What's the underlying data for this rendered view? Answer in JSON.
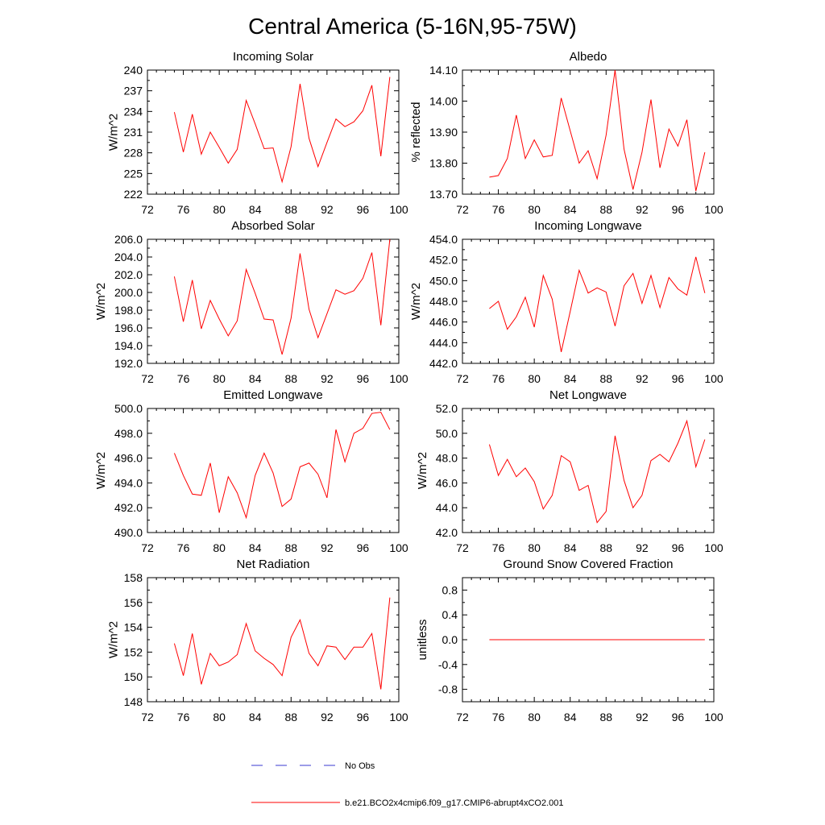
{
  "figure": {
    "title": "Central America (5-16N,95-75W)",
    "series_color": "#ff0000",
    "obs_color": "#3a3ad0"
  },
  "legend": {
    "obs_label": "No Obs",
    "model_label": "b.e21.BCO2x4cmip6.f09_g17.CMIP6-abrupt4xCO2.001"
  },
  "chart_data": [
    {
      "type": "line",
      "title": "Incoming Solar",
      "xlabel": "",
      "ylabel": "W/m^2",
      "xlim": [
        72,
        100
      ],
      "xticks": [
        72,
        76,
        80,
        84,
        88,
        92,
        96,
        100
      ],
      "xtick_labels": [
        "72",
        "76",
        "80",
        "84",
        "88",
        "92",
        "96",
        "100"
      ],
      "ylim": [
        222,
        240
      ],
      "yticks": [
        222,
        225,
        228,
        231,
        234,
        237,
        240
      ],
      "ytick_labels": [
        "222",
        "225",
        "228",
        "231",
        "234",
        "237",
        "240"
      ],
      "x": [
        75,
        76,
        77,
        78,
        79,
        80,
        81,
        82,
        83,
        84,
        85,
        86,
        87,
        88,
        89,
        90,
        91,
        92,
        93,
        94,
        95,
        96,
        97,
        98,
        99
      ],
      "series": [
        {
          "name": "b.e21.BCO2x4cmip6.f09_g17.CMIP6-abrupt4xCO2.001",
          "values": [
            233.9,
            228.1,
            233.6,
            227.8,
            231.0,
            228.8,
            226.5,
            228.5,
            235.6,
            232.2,
            228.6,
            228.7,
            223.8,
            228.9,
            238.0,
            230.1,
            226.0,
            229.5,
            232.9,
            231.8,
            232.5,
            234.1,
            237.8,
            227.5,
            239.0
          ]
        }
      ]
    },
    {
      "type": "line",
      "title": "Albedo",
      "xlabel": "",
      "ylabel": "% reflected",
      "xlim": [
        72,
        100
      ],
      "xticks": [
        72,
        76,
        80,
        84,
        88,
        92,
        96,
        100
      ],
      "xtick_labels": [
        "72",
        "76",
        "80",
        "84",
        "88",
        "92",
        "96",
        "100"
      ],
      "ylim": [
        13.7,
        14.1
      ],
      "yticks": [
        13.7,
        13.8,
        13.9,
        14.0,
        14.1
      ],
      "ytick_labels": [
        "13.70",
        "13.80",
        "13.90",
        "14.00",
        "14.10"
      ],
      "x": [
        75,
        76,
        77,
        78,
        79,
        80,
        81,
        82,
        83,
        84,
        85,
        86,
        87,
        88,
        89,
        90,
        91,
        92,
        93,
        94,
        95,
        96,
        97,
        98,
        99
      ],
      "series": [
        {
          "name": "b.e21.BCO2x4cmip6.f09_g17.CMIP6-abrupt4xCO2.001",
          "values": [
            13.755,
            13.76,
            13.815,
            13.955,
            13.815,
            13.875,
            13.82,
            13.825,
            14.01,
            13.905,
            13.8,
            13.84,
            13.75,
            13.89,
            14.1,
            13.845,
            13.715,
            13.835,
            14.005,
            13.785,
            13.91,
            13.855,
            13.94,
            13.71,
            13.835
          ]
        }
      ]
    },
    {
      "type": "line",
      "title": "Absorbed Solar",
      "xlabel": "",
      "ylabel": "W/m^2",
      "xlim": [
        72,
        100
      ],
      "xticks": [
        72,
        76,
        80,
        84,
        88,
        92,
        96,
        100
      ],
      "xtick_labels": [
        "72",
        "76",
        "80",
        "84",
        "88",
        "92",
        "96",
        "100"
      ],
      "ylim": [
        192,
        206
      ],
      "yticks": [
        192,
        194,
        196,
        198,
        200,
        202,
        204,
        206
      ],
      "ytick_labels": [
        "192.0",
        "194.0",
        "196.0",
        "198.0",
        "200.0",
        "202.0",
        "204.0",
        "206.0"
      ],
      "x": [
        75,
        76,
        77,
        78,
        79,
        80,
        81,
        82,
        83,
        84,
        85,
        86,
        87,
        88,
        89,
        90,
        91,
        92,
        93,
        94,
        95,
        96,
        97,
        98,
        99
      ],
      "series": [
        {
          "name": "b.e21.BCO2x4cmip6.f09_g17.CMIP6-abrupt4xCO2.001",
          "values": [
            201.8,
            196.7,
            201.4,
            195.9,
            199.1,
            197.0,
            195.1,
            196.8,
            202.6,
            199.9,
            197.0,
            196.9,
            193.0,
            197.1,
            204.4,
            198.1,
            194.9,
            197.6,
            200.3,
            199.8,
            200.2,
            201.6,
            204.5,
            196.3,
            206.0
          ]
        }
      ]
    },
    {
      "type": "line",
      "title": "Incoming Longwave",
      "xlabel": "",
      "ylabel": "W/m^2",
      "xlim": [
        72,
        100
      ],
      "xticks": [
        72,
        76,
        80,
        84,
        88,
        92,
        96,
        100
      ],
      "xtick_labels": [
        "72",
        "76",
        "80",
        "84",
        "88",
        "92",
        "96",
        "100"
      ],
      "ylim": [
        442,
        454
      ],
      "yticks": [
        442,
        444,
        446,
        448,
        450,
        452,
        454
      ],
      "ytick_labels": [
        "442.0",
        "444.0",
        "446.0",
        "448.0",
        "450.0",
        "452.0",
        "454.0"
      ],
      "x": [
        75,
        76,
        77,
        78,
        79,
        80,
        81,
        82,
        83,
        84,
        85,
        86,
        87,
        88,
        89,
        90,
        91,
        92,
        93,
        94,
        95,
        96,
        97,
        98,
        99
      ],
      "series": [
        {
          "name": "b.e21.BCO2x4cmip6.f09_g17.CMIP6-abrupt4xCO2.001",
          "values": [
            447.3,
            448.0,
            445.3,
            446.5,
            448.4,
            445.5,
            450.5,
            448.2,
            443.1,
            447.0,
            451.0,
            448.8,
            449.3,
            448.9,
            445.6,
            449.5,
            450.7,
            447.8,
            450.5,
            447.4,
            450.3,
            449.2,
            448.6,
            452.3,
            448.8
          ]
        }
      ]
    },
    {
      "type": "line",
      "title": "Emitted Longwave",
      "xlabel": "",
      "ylabel": "W/m^2",
      "xlim": [
        72,
        100
      ],
      "xticks": [
        72,
        76,
        80,
        84,
        88,
        92,
        96,
        100
      ],
      "xtick_labels": [
        "72",
        "76",
        "80",
        "84",
        "88",
        "92",
        "96",
        "100"
      ],
      "ylim": [
        490,
        500
      ],
      "yticks": [
        490,
        492,
        494,
        496,
        498,
        500
      ],
      "ytick_labels": [
        "490.0",
        "492.0",
        "494.0",
        "496.0",
        "498.0",
        "500.0"
      ],
      "x": [
        75,
        76,
        77,
        78,
        79,
        80,
        81,
        82,
        83,
        84,
        85,
        86,
        87,
        88,
        89,
        90,
        91,
        92,
        93,
        94,
        95,
        96,
        97,
        98,
        99
      ],
      "series": [
        {
          "name": "b.e21.BCO2x4cmip6.f09_g17.CMIP6-abrupt4xCO2.001",
          "values": [
            496.4,
            494.6,
            493.1,
            493.0,
            495.6,
            491.6,
            494.5,
            493.2,
            491.2,
            494.6,
            496.4,
            494.8,
            492.1,
            492.7,
            495.3,
            495.6,
            494.7,
            492.8,
            498.3,
            495.7,
            498.0,
            498.4,
            499.6,
            499.7,
            498.3
          ]
        }
      ]
    },
    {
      "type": "line",
      "title": "Net Longwave",
      "xlabel": "",
      "ylabel": "W/m^2",
      "xlim": [
        72,
        100
      ],
      "xticks": [
        72,
        76,
        80,
        84,
        88,
        92,
        96,
        100
      ],
      "xtick_labels": [
        "72",
        "76",
        "80",
        "84",
        "88",
        "92",
        "96",
        "100"
      ],
      "ylim": [
        42,
        52
      ],
      "yticks": [
        42,
        44,
        46,
        48,
        50,
        52
      ],
      "ytick_labels": [
        "42.0",
        "44.0",
        "46.0",
        "48.0",
        "50.0",
        "52.0"
      ],
      "x": [
        75,
        76,
        77,
        78,
        79,
        80,
        81,
        82,
        83,
        84,
        85,
        86,
        87,
        88,
        89,
        90,
        91,
        92,
        93,
        94,
        95,
        96,
        97,
        98,
        99
      ],
      "series": [
        {
          "name": "b.e21.BCO2x4cmip6.f09_g17.CMIP6-abrupt4xCO2.001",
          "values": [
            49.1,
            46.6,
            47.9,
            46.5,
            47.2,
            46.1,
            43.9,
            45.0,
            48.2,
            47.7,
            45.4,
            45.8,
            42.8,
            43.7,
            49.8,
            46.2,
            44.0,
            45.0,
            47.8,
            48.3,
            47.7,
            49.2,
            51.0,
            47.3,
            49.5
          ]
        }
      ]
    },
    {
      "type": "line",
      "title": "Net Radiation",
      "xlabel": "",
      "ylabel": "W/m^2",
      "xlim": [
        72,
        100
      ],
      "xticks": [
        72,
        76,
        80,
        84,
        88,
        92,
        96,
        100
      ],
      "xtick_labels": [
        "72",
        "76",
        "80",
        "84",
        "88",
        "92",
        "96",
        "100"
      ],
      "ylim": [
        148,
        158
      ],
      "yticks": [
        148,
        150,
        152,
        154,
        156,
        158
      ],
      "ytick_labels": [
        "148",
        "150",
        "152",
        "154",
        "156",
        "158"
      ],
      "x": [
        75,
        76,
        77,
        78,
        79,
        80,
        81,
        82,
        83,
        84,
        85,
        86,
        87,
        88,
        89,
        90,
        91,
        92,
        93,
        94,
        95,
        96,
        97,
        98,
        99
      ],
      "series": [
        {
          "name": "b.e21.BCO2x4cmip6.f09_g17.CMIP6-abrupt4xCO2.001",
          "values": [
            152.7,
            150.1,
            153.5,
            149.4,
            151.9,
            150.9,
            151.2,
            151.8,
            154.3,
            152.1,
            151.5,
            151.0,
            150.1,
            153.2,
            154.6,
            151.9,
            150.9,
            152.5,
            152.4,
            151.4,
            152.4,
            152.4,
            153.5,
            149.0,
            156.4
          ]
        }
      ]
    },
    {
      "type": "line",
      "title": "Ground Snow Covered Fraction",
      "xlabel": "",
      "ylabel": "unitless",
      "xlim": [
        72,
        100
      ],
      "xticks": [
        72,
        76,
        80,
        84,
        88,
        92,
        96,
        100
      ],
      "xtick_labels": [
        "72",
        "76",
        "80",
        "84",
        "88",
        "92",
        "96",
        "100"
      ],
      "ylim": [
        -1.0,
        1.0
      ],
      "yticks": [
        -0.8,
        -0.4,
        0.0,
        0.4,
        0.8
      ],
      "ytick_labels": [
        "-0.8",
        "-0.4",
        "0.0",
        "0.4",
        "0.8"
      ],
      "x": [
        75,
        99
      ],
      "series": [
        {
          "name": "b.e21.BCO2x4cmip6.f09_g17.CMIP6-abrupt4xCO2.001",
          "values": [
            0.0,
            0.0
          ]
        }
      ]
    }
  ]
}
